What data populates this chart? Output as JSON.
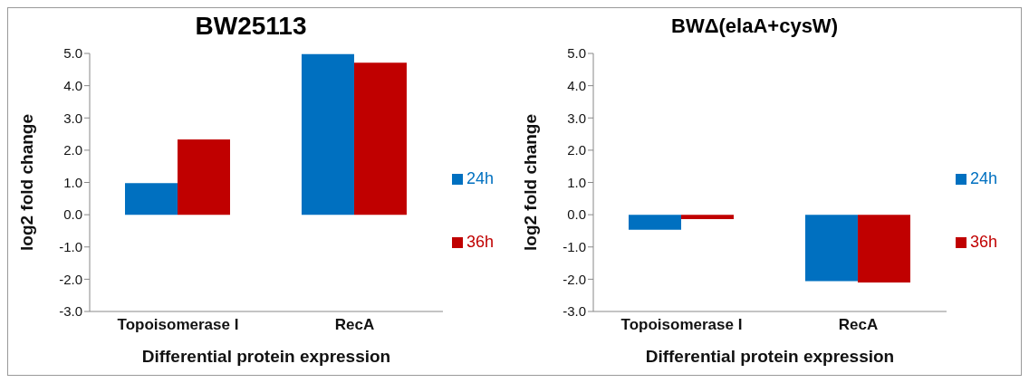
{
  "chart_data": [
    {
      "type": "bar",
      "title": "BW25113",
      "xlabel": "Differential protein expression",
      "ylabel": "log2 fold change",
      "categories": [
        "Topoisomerase I",
        "RecA"
      ],
      "series": [
        {
          "name": "24h",
          "color": "#0070c0",
          "values": [
            0.98,
            4.98
          ]
        },
        {
          "name": "36h",
          "color": "#c00000",
          "values": [
            2.33,
            4.71
          ]
        }
      ],
      "ylim": [
        -3,
        5
      ],
      "yticks": [
        {
          "value": -3,
          "label": "-3.0"
        },
        {
          "value": -2,
          "label": "-2.0"
        },
        {
          "value": -1,
          "label": "-1.0"
        },
        {
          "value": 0,
          "label": "0.0"
        },
        {
          "value": 1,
          "label": "1.0"
        },
        {
          "value": 2,
          "label": "2.0"
        },
        {
          "value": 3,
          "label": "3.0"
        },
        {
          "value": 4,
          "label": "4.0"
        },
        {
          "value": 5,
          "label": "5.0"
        }
      ],
      "grid": false,
      "legend": "right"
    },
    {
      "type": "bar",
      "title": "BWΔ(elaA+cysW)",
      "xlabel": "Differential protein expression",
      "ylabel": "log2 fold change",
      "categories": [
        "Topoisomerase I",
        "RecA"
      ],
      "series": [
        {
          "name": "24h",
          "color": "#0070c0",
          "values": [
            -0.47,
            -2.06
          ]
        },
        {
          "name": "36h",
          "color": "#c00000",
          "values": [
            -0.14,
            -2.1
          ]
        }
      ],
      "ylim": [
        -3,
        5
      ],
      "yticks": [
        {
          "value": -3,
          "label": "-3.0"
        },
        {
          "value": -2,
          "label": "-2.0"
        },
        {
          "value": -1,
          "label": "-1.0"
        },
        {
          "value": 0,
          "label": "0.0"
        },
        {
          "value": 1,
          "label": "1.0"
        },
        {
          "value": 2,
          "label": "2.0"
        },
        {
          "value": 3,
          "label": "3.0"
        },
        {
          "value": 4,
          "label": "4.0"
        },
        {
          "value": 5,
          "label": "5.0"
        }
      ],
      "grid": false,
      "legend": "right"
    }
  ]
}
